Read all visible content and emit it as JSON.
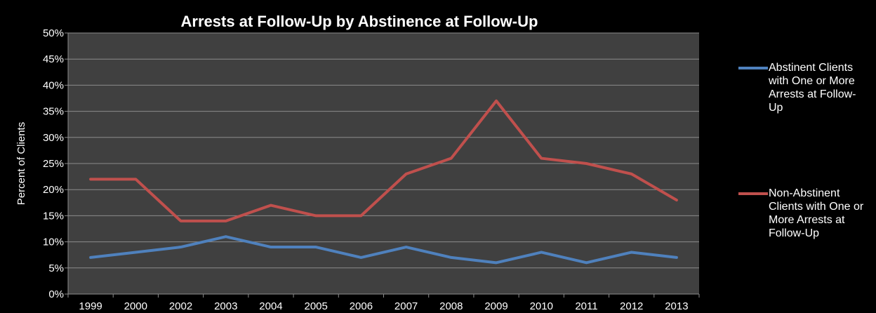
{
  "chart_data": {
    "type": "line",
    "title": "Arrests at Follow-Up by Abstinence at Follow-Up",
    "xlabel": "",
    "ylabel": "Percent of Clients",
    "categories": [
      "1999",
      "2000",
      "2002",
      "2003",
      "2004",
      "2005",
      "2006",
      "2007",
      "2008",
      "2009",
      "2010",
      "2011",
      "2012",
      "2013"
    ],
    "ylim": [
      0,
      50
    ],
    "ytick_step": 5,
    "ytick_suffix": "%",
    "grid": true,
    "legend_position": "right",
    "plot_background": "#404040",
    "series": [
      {
        "name": "Abstinent Clients with One or More Arrests at Follow-Up",
        "color": "#4f81bd",
        "values": [
          7,
          8,
          9,
          11,
          9,
          9,
          7,
          9,
          7,
          6,
          8,
          6,
          8,
          7
        ]
      },
      {
        "name": "Non-Abstinent Clients with One or More Arrests at Follow-Up",
        "color": "#c0504d",
        "values": [
          22,
          22,
          14,
          14,
          17,
          15,
          15,
          23,
          26,
          37,
          26,
          25,
          23,
          18
        ]
      }
    ]
  }
}
